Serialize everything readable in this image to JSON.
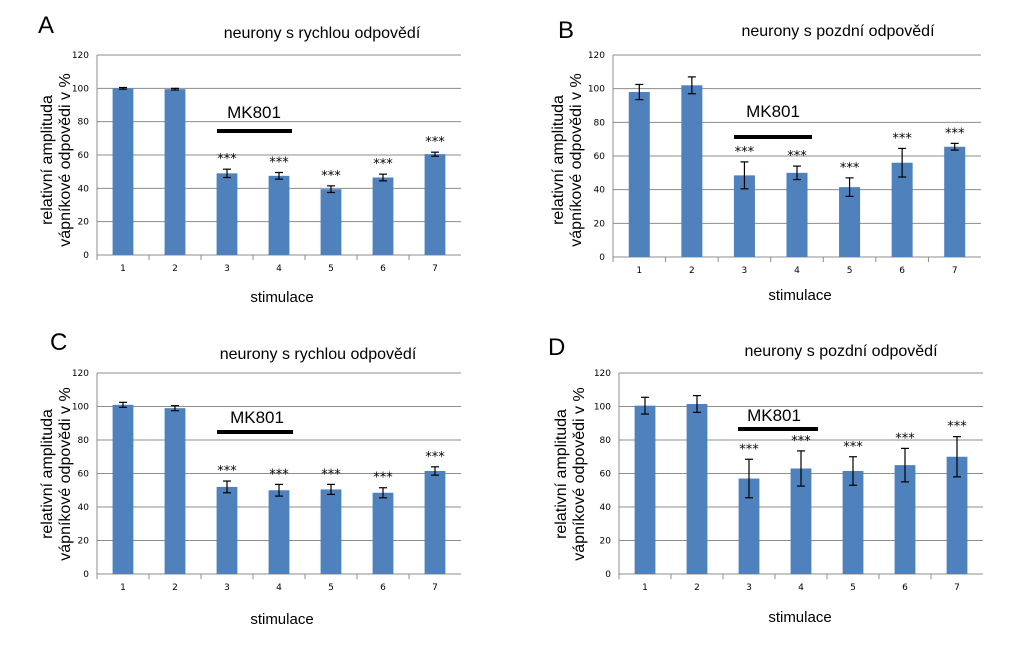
{
  "chart_data": [
    {
      "type": "bar",
      "panel": "A",
      "title": "neurony s rychlou odpovědí",
      "ylabel": [
        "relativní amplituda",
        "vápníkové odpovědi v  %"
      ],
      "xlabel": "stimulace",
      "categories": [
        "1",
        "2",
        "3",
        "4",
        "5",
        "6",
        "7"
      ],
      "values": [
        100,
        99.5,
        49,
        47.5,
        39.5,
        46.5,
        60.5
      ],
      "errors": [
        0.5,
        0.5,
        2.5,
        2,
        2,
        2,
        1.2
      ],
      "significance": [
        "",
        "",
        "***",
        "***",
        "***",
        "***",
        "***"
      ],
      "ylim": [
        0,
        120
      ],
      "yticks": [
        "0",
        "20",
        "40",
        "60",
        "80",
        "100",
        "120"
      ],
      "treatment_label": "MK801",
      "treatment_span": [
        "3",
        "4"
      ],
      "bar_color": "#4f81bd",
      "grid": true
    },
    {
      "type": "bar",
      "panel": "B",
      "title": "neurony s pozdní odpovědí",
      "ylabel": [
        "relativní amplituda",
        "vápníkové odpovědi v  %"
      ],
      "xlabel": "stimulace",
      "categories": [
        "1",
        "2",
        "3",
        "4",
        "5",
        "6",
        "7"
      ],
      "values": [
        98,
        102,
        48.5,
        50,
        41.5,
        56,
        65.5
      ],
      "errors": [
        4.5,
        5,
        8,
        4,
        5.5,
        8.5,
        2
      ],
      "significance": [
        "",
        "",
        "***",
        "***",
        "***",
        "***",
        "***"
      ],
      "ylim": [
        0,
        120
      ],
      "yticks": [
        "0",
        "20",
        "40",
        "60",
        "80",
        "100",
        "120"
      ],
      "treatment_label": "MK801",
      "treatment_span": [
        "3",
        "4"
      ],
      "bar_color": "#4f81bd",
      "grid": true
    },
    {
      "type": "bar",
      "panel": "C",
      "title": "neurony s rychlou odpovědí",
      "ylabel": [
        "relativní amplituda",
        "vápníkové odpovědi v  %"
      ],
      "xlabel": "stimulace",
      "categories": [
        "1",
        "2",
        "3",
        "4",
        "5",
        "6",
        "7"
      ],
      "values": [
        101,
        99,
        52,
        50,
        50.5,
        48.5,
        61.5
      ],
      "errors": [
        1.5,
        1.5,
        3.5,
        3.5,
        3,
        3,
        2.5
      ],
      "significance": [
        "",
        "",
        "***",
        "***",
        "***",
        "***",
        "***"
      ],
      "ylim": [
        0,
        120
      ],
      "yticks": [
        "0",
        "20",
        "40",
        "60",
        "80",
        "100",
        "120"
      ],
      "treatment_label": "MK801",
      "treatment_span": [
        "3",
        "4"
      ],
      "bar_color": "#4f81bd",
      "grid": true
    },
    {
      "type": "bar",
      "panel": "D",
      "title": "neurony s pozdní odpovědí",
      "ylabel": [
        "relativní amplituda",
        "vápníkové odpovědi v  %"
      ],
      "xlabel": "stimulace",
      "categories": [
        "1",
        "2",
        "3",
        "4",
        "5",
        "6",
        "7"
      ],
      "values": [
        100.5,
        101.5,
        57,
        63,
        61.5,
        65,
        70
      ],
      "errors": [
        5,
        5,
        11.5,
        10.5,
        8.5,
        10,
        12
      ],
      "significance": [
        "",
        "",
        "***",
        "***",
        "***",
        "***",
        "***"
      ],
      "ylim": [
        0,
        120
      ],
      "yticks": [
        "0",
        "20",
        "40",
        "60",
        "80",
        "100",
        "120"
      ],
      "treatment_label": "MK801",
      "treatment_span": [
        "3",
        "4"
      ],
      "bar_color": "#4f81bd",
      "grid": true
    }
  ]
}
